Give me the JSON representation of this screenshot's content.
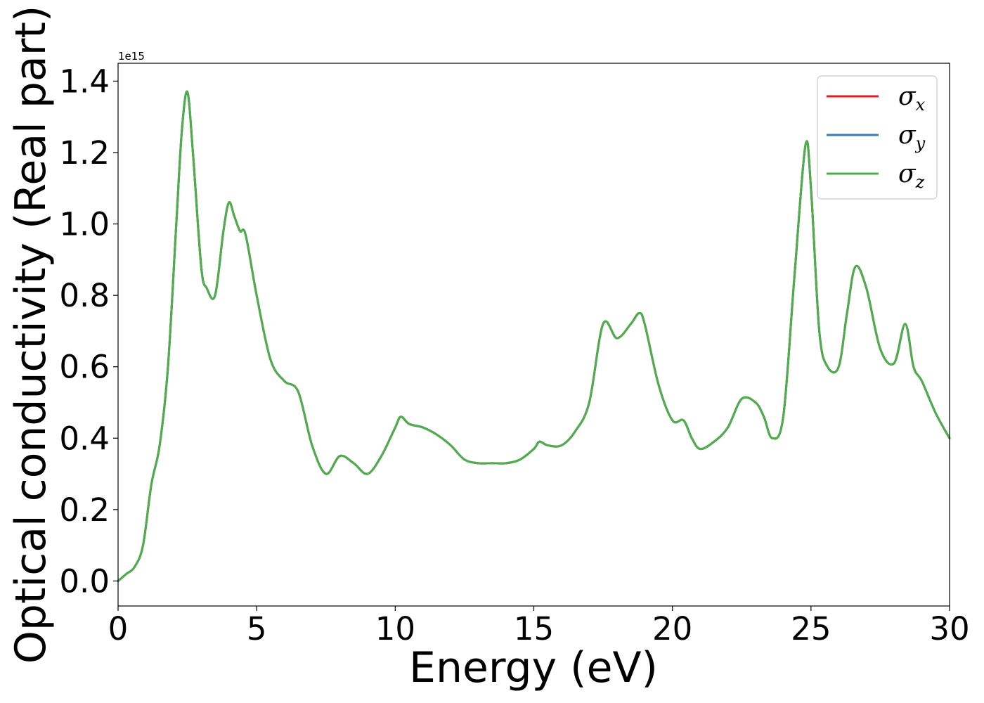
{
  "chart_data": {
    "type": "line",
    "title": "",
    "xlabel": "Energy (eV)",
    "ylabel": "Optical conductivity (Real part)",
    "y_offset_label": "1e15",
    "y_scale": 1000000000000000.0,
    "xlim": [
      0,
      30
    ],
    "ylim": [
      -0.07,
      1.45
    ],
    "xticks": [
      0,
      5,
      10,
      15,
      20,
      25,
      30
    ],
    "xtick_labels": [
      "0",
      "5",
      "10",
      "15",
      "20",
      "25",
      "30"
    ],
    "yticks": [
      0.0,
      0.2,
      0.4,
      0.6,
      0.8,
      1.0,
      1.2,
      1.4
    ],
    "ytick_labels": [
      "0.0",
      "0.2",
      "0.4",
      "0.6",
      "0.8",
      "1.0",
      "1.2",
      "1.4"
    ],
    "grid": false,
    "legend_position": "top-right",
    "x": [
      0,
      0.3,
      0.6,
      0.9,
      1.2,
      1.5,
      1.8,
      2.1,
      2.3,
      2.5,
      2.7,
      3.0,
      3.2,
      3.5,
      3.8,
      4.0,
      4.2,
      4.4,
      4.6,
      5.0,
      5.5,
      6.0,
      6.5,
      7.0,
      7.5,
      8.0,
      8.5,
      9.0,
      9.5,
      10.0,
      10.2,
      10.5,
      11.0,
      11.5,
      12.0,
      12.5,
      13.0,
      13.5,
      14.0,
      14.5,
      15.0,
      15.2,
      15.5,
      16.0,
      16.5,
      17.0,
      17.5,
      18.0,
      18.5,
      18.8,
      19.0,
      19.5,
      20.0,
      20.4,
      20.7,
      21.0,
      21.5,
      22.0,
      22.5,
      23.0,
      23.3,
      23.6,
      24.0,
      24.4,
      24.8,
      25.0,
      25.3,
      25.6,
      26.0,
      26.3,
      26.6,
      27.0,
      27.5,
      28.0,
      28.4,
      28.7,
      29.0,
      29.5,
      30.0
    ],
    "series": [
      {
        "name": "σx",
        "color": "#e41a1c",
        "values": [
          0.0,
          0.02,
          0.04,
          0.1,
          0.27,
          0.38,
          0.6,
          1.0,
          1.26,
          1.37,
          1.2,
          0.88,
          0.82,
          0.8,
          0.98,
          1.06,
          1.02,
          0.98,
          0.97,
          0.8,
          0.62,
          0.56,
          0.53,
          0.38,
          0.3,
          0.35,
          0.33,
          0.3,
          0.35,
          0.43,
          0.46,
          0.44,
          0.43,
          0.41,
          0.38,
          0.34,
          0.33,
          0.33,
          0.33,
          0.34,
          0.37,
          0.39,
          0.38,
          0.38,
          0.42,
          0.5,
          0.72,
          0.68,
          0.72,
          0.75,
          0.72,
          0.55,
          0.45,
          0.45,
          0.4,
          0.37,
          0.39,
          0.43,
          0.51,
          0.5,
          0.46,
          0.4,
          0.46,
          0.85,
          1.22,
          1.1,
          0.7,
          0.6,
          0.6,
          0.75,
          0.88,
          0.82,
          0.65,
          0.61,
          0.72,
          0.6,
          0.56,
          0.47,
          0.4
        ]
      },
      {
        "name": "σy",
        "color": "#377eb8",
        "values": [
          0.0,
          0.02,
          0.04,
          0.1,
          0.27,
          0.38,
          0.6,
          1.0,
          1.26,
          1.37,
          1.2,
          0.88,
          0.82,
          0.8,
          0.98,
          1.06,
          1.02,
          0.98,
          0.97,
          0.8,
          0.62,
          0.56,
          0.53,
          0.38,
          0.3,
          0.35,
          0.33,
          0.3,
          0.35,
          0.43,
          0.46,
          0.44,
          0.43,
          0.41,
          0.38,
          0.34,
          0.33,
          0.33,
          0.33,
          0.34,
          0.37,
          0.39,
          0.38,
          0.38,
          0.42,
          0.5,
          0.72,
          0.68,
          0.72,
          0.75,
          0.72,
          0.55,
          0.45,
          0.45,
          0.4,
          0.37,
          0.39,
          0.43,
          0.51,
          0.5,
          0.46,
          0.4,
          0.46,
          0.85,
          1.22,
          1.1,
          0.7,
          0.6,
          0.6,
          0.75,
          0.88,
          0.82,
          0.65,
          0.61,
          0.72,
          0.6,
          0.56,
          0.47,
          0.4
        ]
      },
      {
        "name": "σz",
        "color": "#4daf4a",
        "values": [
          0.0,
          0.02,
          0.04,
          0.1,
          0.27,
          0.38,
          0.6,
          1.0,
          1.26,
          1.37,
          1.2,
          0.88,
          0.82,
          0.8,
          0.98,
          1.06,
          1.02,
          0.98,
          0.97,
          0.8,
          0.62,
          0.56,
          0.53,
          0.38,
          0.3,
          0.35,
          0.33,
          0.3,
          0.35,
          0.43,
          0.46,
          0.44,
          0.43,
          0.41,
          0.38,
          0.34,
          0.33,
          0.33,
          0.33,
          0.34,
          0.37,
          0.39,
          0.38,
          0.38,
          0.42,
          0.5,
          0.72,
          0.68,
          0.72,
          0.75,
          0.72,
          0.55,
          0.45,
          0.45,
          0.4,
          0.37,
          0.39,
          0.43,
          0.51,
          0.5,
          0.46,
          0.4,
          0.46,
          0.85,
          1.22,
          1.1,
          0.7,
          0.6,
          0.6,
          0.75,
          0.88,
          0.82,
          0.65,
          0.61,
          0.72,
          0.6,
          0.56,
          0.47,
          0.4
        ]
      }
    ],
    "legend": [
      {
        "symbol": "σ",
        "sub": "x",
        "color": "#e41a1c"
      },
      {
        "symbol": "σ",
        "sub": "y",
        "color": "#377eb8"
      },
      {
        "symbol": "σ",
        "sub": "z",
        "color": "#4daf4a"
      }
    ]
  }
}
